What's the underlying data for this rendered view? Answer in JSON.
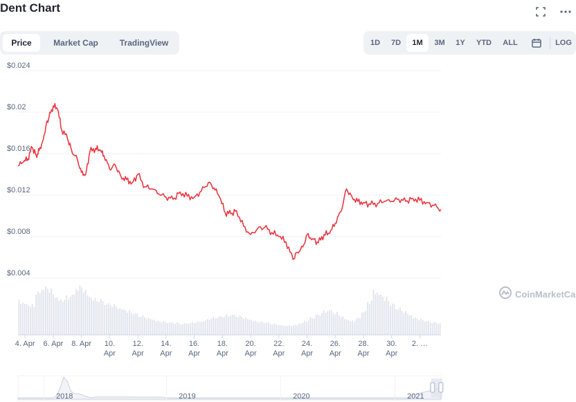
{
  "header": {
    "title": "Dent Chart"
  },
  "icons": {
    "fullscreen": "fullscreen-icon",
    "more": "more-icon",
    "calendar": "calendar-icon",
    "logo": "coinmarketcap-logo-icon"
  },
  "tabs": [
    {
      "label": "Price",
      "active": true
    },
    {
      "label": "Market Cap",
      "active": false
    },
    {
      "label": "TradingView",
      "active": false
    }
  ],
  "ranges": [
    {
      "label": "1D",
      "active": false
    },
    {
      "label": "7D",
      "active": false
    },
    {
      "label": "1M",
      "active": true
    },
    {
      "label": "3M",
      "active": false
    },
    {
      "label": "1Y",
      "active": false
    },
    {
      "label": "YTD",
      "active": false
    },
    {
      "label": "ALL",
      "active": false
    }
  ],
  "log_label": "LOG",
  "watermark": "CoinMarketCap",
  "colors": {
    "line": "#ea3943",
    "volume": "#dfe3ec",
    "grid": "#eff2f5",
    "axis_text": "#58667e"
  },
  "chart_data": {
    "type": "line",
    "title": "",
    "xlabel": "",
    "ylabel": "",
    "ylim": [
      0.004,
      0.024
    ],
    "y_ticks": [
      "$0.004",
      "$0.008",
      "$0.012",
      "$0.016",
      "$0.02",
      "$0.024"
    ],
    "y_tick_values": [
      0.004,
      0.008,
      0.012,
      0.016,
      0.02,
      0.024
    ],
    "x_range": [
      3.5,
      33.5
    ],
    "x_ticks": [
      {
        "day": 4,
        "line1": "4. Apr",
        "line2": ""
      },
      {
        "day": 6,
        "line1": "6. Apr",
        "line2": ""
      },
      {
        "day": 8,
        "line1": "8. Apr",
        "line2": ""
      },
      {
        "day": 10,
        "line1": "10.",
        "line2": "Apr"
      },
      {
        "day": 12,
        "line1": "12.",
        "line2": "Apr"
      },
      {
        "day": 14,
        "line1": "14.",
        "line2": "Apr"
      },
      {
        "day": 16,
        "line1": "16.",
        "line2": "Apr"
      },
      {
        "day": 18,
        "line1": "18.",
        "line2": "Apr"
      },
      {
        "day": 20,
        "line1": "20.",
        "line2": "Apr"
      },
      {
        "day": 22,
        "line1": "22.",
        "line2": "Apr"
      },
      {
        "day": 24,
        "line1": "24.",
        "line2": "Apr"
      },
      {
        "day": 26,
        "line1": "26.",
        "line2": "Apr"
      },
      {
        "day": 28,
        "line1": "28.",
        "line2": "Apr"
      },
      {
        "day": 30,
        "line1": "30.",
        "line2": "Apr"
      },
      {
        "day": 32,
        "line1": "2. …",
        "line2": ""
      }
    ],
    "grid": true,
    "legend": "none",
    "series": [
      {
        "x": [
          3.5,
          3.9,
          4.2,
          4.5,
          4.8,
          5.0,
          5.3,
          5.5,
          5.7,
          6.0,
          6.3,
          6.6,
          7.0,
          7.3,
          7.7,
          8.0,
          8.3,
          8.6,
          9.0,
          9.3,
          9.6,
          10.0,
          10.4,
          10.8,
          11.2,
          11.6,
          12.0,
          12.5,
          13.0,
          13.5,
          14.0,
          14.5,
          15.0,
          15.5,
          16.0,
          16.5,
          17.0,
          17.4,
          17.8,
          18.2,
          18.6,
          19.0,
          19.5,
          20.0,
          20.5,
          21.0,
          21.5,
          22.0,
          22.5,
          23.0,
          23.3,
          23.7,
          24.0,
          24.4,
          24.8,
          25.2,
          25.6,
          26.0,
          26.4,
          26.8,
          27.2,
          27.6,
          28.0,
          28.5,
          29.0,
          29.5,
          30.0,
          30.5,
          31.0,
          31.5,
          32.0,
          32.5,
          33.0,
          33.5
        ],
        "y": [
          0.0148,
          0.0152,
          0.0155,
          0.0166,
          0.0158,
          0.0163,
          0.0174,
          0.0188,
          0.0195,
          0.0206,
          0.0203,
          0.0183,
          0.0175,
          0.0163,
          0.0155,
          0.0142,
          0.014,
          0.0162,
          0.0165,
          0.0163,
          0.0158,
          0.0145,
          0.0149,
          0.0138,
          0.0135,
          0.0132,
          0.014,
          0.0128,
          0.0126,
          0.0121,
          0.0118,
          0.0116,
          0.0123,
          0.0119,
          0.0118,
          0.0124,
          0.0132,
          0.0127,
          0.0118,
          0.0103,
          0.0102,
          0.0105,
          0.009,
          0.0082,
          0.0088,
          0.0089,
          0.0084,
          0.008,
          0.0075,
          0.0058,
          0.0065,
          0.007,
          0.0082,
          0.0078,
          0.0074,
          0.0082,
          0.0083,
          0.0093,
          0.0104,
          0.0126,
          0.0118,
          0.0114,
          0.0113,
          0.0111,
          0.0112,
          0.0114,
          0.0114,
          0.0116,
          0.0114,
          0.0117,
          0.0115,
          0.0113,
          0.011,
          0.0106
        ]
      }
    ],
    "volume": [
      42,
      40,
      38,
      55,
      60,
      58,
      50,
      45,
      48,
      52,
      60,
      58,
      50,
      46,
      45,
      40,
      38,
      35,
      33,
      30,
      28,
      24,
      22,
      20,
      18,
      17,
      16,
      15,
      14,
      15,
      16,
      17,
      18,
      20,
      22,
      24,
      25,
      26,
      24,
      22,
      20,
      18,
      17,
      16,
      14,
      13,
      12,
      12,
      13,
      15,
      18,
      22,
      26,
      30,
      32,
      28,
      24,
      20,
      18,
      22,
      30,
      42,
      55,
      52,
      46,
      40,
      34,
      30,
      26,
      22,
      20,
      18,
      16,
      15
    ],
    "navigator": {
      "labels": [
        "2018",
        "2019",
        "2020",
        "2021"
      ],
      "label_positions": [
        0.11,
        0.4,
        0.67,
        0.94
      ]
    }
  }
}
